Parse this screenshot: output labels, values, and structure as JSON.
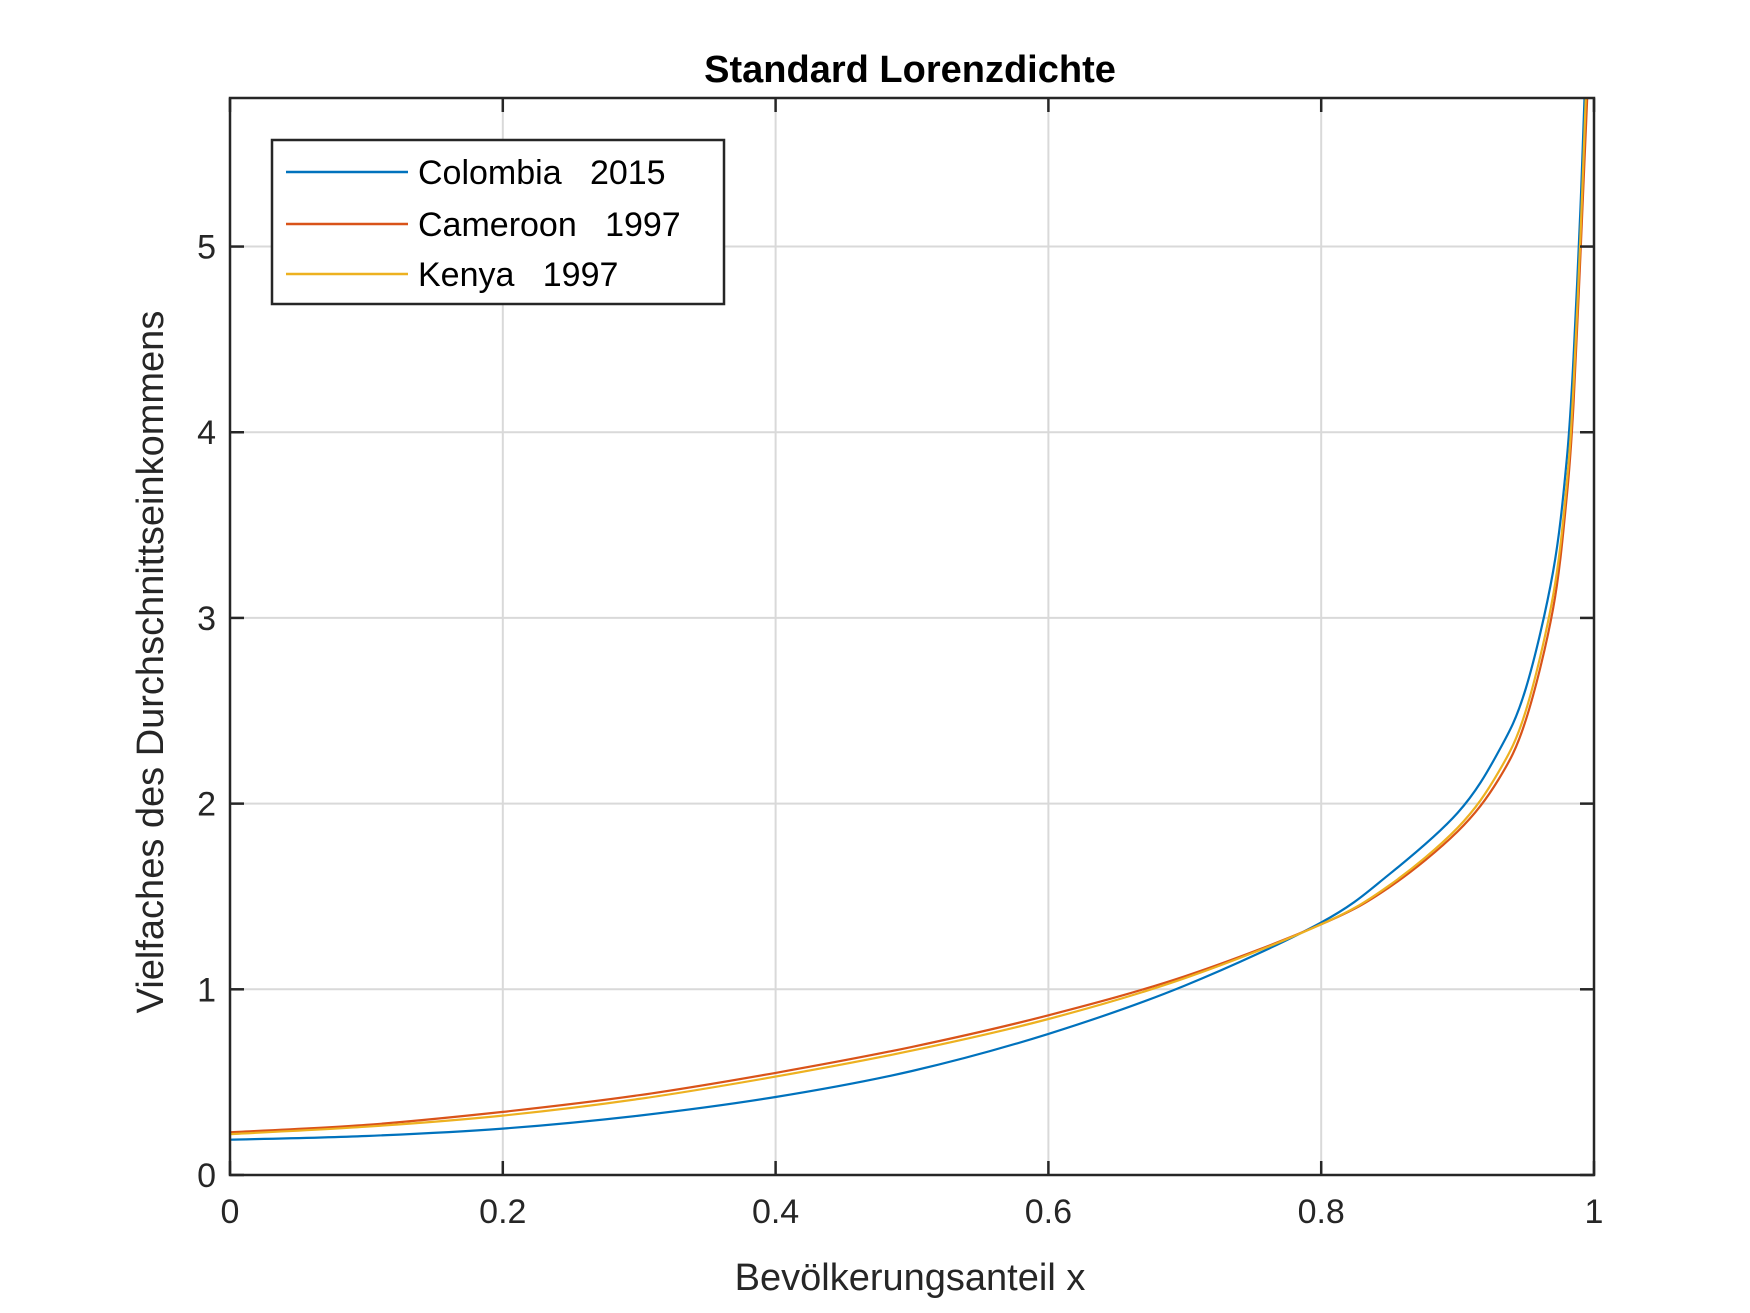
{
  "chart_data": {
    "type": "line",
    "title": "Standard Lorenzdichte",
    "xlabel": "Bevölkerungsanteil x",
    "ylabel": "Vielfaches des Durchschnittseinkommens",
    "xlim": [
      0,
      1
    ],
    "ylim": [
      0,
      5.8
    ],
    "xticks": [
      0,
      0.2,
      0.4,
      0.6,
      0.8,
      1
    ],
    "xtick_labels": [
      "0",
      "0.2",
      "0.4",
      "0.6",
      "0.8",
      "1"
    ],
    "yticks": [
      0,
      1,
      2,
      3,
      4,
      5
    ],
    "ytick_labels": [
      "0",
      "1",
      "2",
      "3",
      "4",
      "5"
    ],
    "grid": true,
    "legend_position": "top-left",
    "series": [
      {
        "name": "Colombia   2015",
        "color": "#0072BD",
        "x": [
          0,
          0.1,
          0.2,
          0.3,
          0.4,
          0.5,
          0.6,
          0.7,
          0.8,
          0.85,
          0.9,
          0.93,
          0.95,
          0.97,
          0.98,
          0.985,
          0.99,
          0.993
        ],
        "y": [
          0.19,
          0.21,
          0.25,
          0.32,
          0.42,
          0.56,
          0.76,
          1.02,
          1.36,
          1.62,
          1.95,
          2.28,
          2.62,
          3.25,
          3.85,
          4.4,
          5.2,
          5.8
        ]
      },
      {
        "name": "Cameroon   1997",
        "color": "#D95319",
        "x": [
          0,
          0.1,
          0.2,
          0.3,
          0.4,
          0.5,
          0.6,
          0.7,
          0.8,
          0.85,
          0.9,
          0.93,
          0.95,
          0.97,
          0.98,
          0.985,
          0.99,
          0.995
        ],
        "y": [
          0.23,
          0.27,
          0.34,
          0.43,
          0.55,
          0.69,
          0.86,
          1.07,
          1.35,
          1.55,
          1.85,
          2.13,
          2.45,
          3.05,
          3.65,
          4.15,
          4.95,
          5.8
        ]
      },
      {
        "name": "Kenya   1997",
        "color": "#EDB120",
        "x": [
          0,
          0.1,
          0.2,
          0.3,
          0.4,
          0.5,
          0.6,
          0.7,
          0.8,
          0.85,
          0.9,
          0.93,
          0.95,
          0.97,
          0.98,
          0.985,
          0.99,
          0.994
        ],
        "y": [
          0.22,
          0.26,
          0.32,
          0.41,
          0.53,
          0.67,
          0.84,
          1.06,
          1.35,
          1.56,
          1.87,
          2.17,
          2.5,
          3.12,
          3.72,
          4.25,
          5.05,
          5.8
        ]
      }
    ]
  }
}
